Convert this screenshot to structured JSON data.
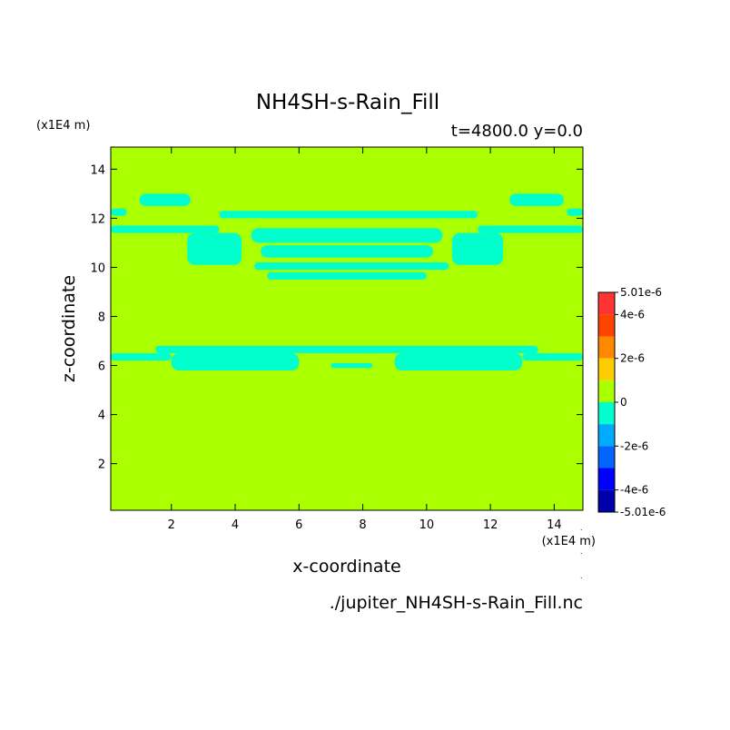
{
  "chart_data": {
    "type": "heatmap",
    "title": "NH4SH-s-Rain_Fill",
    "subtitle": "t=4800.0 y=0.0",
    "xlabel": "x-coordinate",
    "ylabel": "z-coordinate",
    "x_unit": "(x1E4 m)",
    "y_unit": "(x1E4 m)",
    "filename": "./jupiter_NH4SH-s-Rain_Fill.nc",
    "xlim": [
      0.1,
      14.9
    ],
    "ylim": [
      0.1,
      14.9
    ],
    "x_ticks": [
      "2",
      "4",
      "6",
      "8",
      "10",
      "12",
      "14"
    ],
    "y_ticks": [
      "2",
      "4",
      "6",
      "8",
      "10",
      "12",
      "14"
    ],
    "x_tick_values": [
      2,
      4,
      6,
      8,
      10,
      12,
      14
    ],
    "y_tick_values": [
      2,
      4,
      6,
      8,
      10,
      12,
      14
    ],
    "background_value": 0,
    "background_color": "#aaff00",
    "anomaly_color": "#00ffcc",
    "colorbar": {
      "labels": [
        "5.01e-6",
        "4e-6",
        "2e-6",
        "0",
        "-2e-6",
        "-4e-6",
        "-5.01e-6"
      ],
      "label_values": [
        5.01e-06,
        4e-06,
        2e-06,
        0,
        -2e-06,
        -4e-06,
        -5.01e-06
      ],
      "vmin": -5.01e-06,
      "vmax": 5.01e-06,
      "bands": [
        {
          "from": 4e-06,
          "to": 5.01e-06,
          "color": "#ff3333"
        },
        {
          "from": 3e-06,
          "to": 4e-06,
          "color": "#ff4400"
        },
        {
          "from": 2e-06,
          "to": 3e-06,
          "color": "#ff8800"
        },
        {
          "from": 1e-06,
          "to": 2e-06,
          "color": "#ffcc00"
        },
        {
          "from": 0,
          "to": 1e-06,
          "color": "#aaff00"
        },
        {
          "from": -1e-06,
          "to": 0,
          "color": "#00ffcc"
        },
        {
          "from": -2e-06,
          "to": -1e-06,
          "color": "#00aaff"
        },
        {
          "from": -3e-06,
          "to": -2e-06,
          "color": "#0066ff"
        },
        {
          "from": -4e-06,
          "to": -3e-06,
          "color": "#0000ff"
        },
        {
          "from": -5.01e-06,
          "to": -4e-06,
          "color": "#0000aa"
        }
      ]
    },
    "anomaly_regions": [
      {
        "name": "upper-band-main",
        "x": [
          3.5,
          11.6
        ],
        "z": [
          12.0,
          12.3
        ]
      },
      {
        "name": "upper-band-left",
        "x": [
          0.1,
          3.5
        ],
        "z": [
          11.4,
          11.7
        ]
      },
      {
        "name": "upper-band-right",
        "x": [
          11.6,
          14.9
        ],
        "z": [
          11.4,
          11.7
        ]
      },
      {
        "name": "upper-band-left-edge",
        "x": [
          0.1,
          0.6
        ],
        "z": [
          12.1,
          12.4
        ]
      },
      {
        "name": "upper-band-right-edge",
        "x": [
          14.4,
          14.9
        ],
        "z": [
          12.1,
          12.4
        ]
      },
      {
        "name": "upper-arc-left",
        "x": [
          2.5,
          4.2
        ],
        "z": [
          10.1,
          11.4
        ]
      },
      {
        "name": "upper-arc-right",
        "x": [
          10.8,
          12.4
        ],
        "z": [
          10.1,
          11.4
        ]
      },
      {
        "name": "upper-ring-1",
        "x": [
          4.5,
          10.5
        ],
        "z": [
          11.0,
          11.6
        ]
      },
      {
        "name": "upper-ring-2",
        "x": [
          4.8,
          10.2
        ],
        "z": [
          10.4,
          10.9
        ]
      },
      {
        "name": "upper-ring-3",
        "x": [
          4.6,
          10.7
        ],
        "z": [
          9.9,
          10.2
        ]
      },
      {
        "name": "upper-ring-4",
        "x": [
          5.0,
          10.0
        ],
        "z": [
          9.5,
          9.8
        ]
      },
      {
        "name": "upper-top-left",
        "x": [
          1.0,
          2.6
        ],
        "z": [
          12.5,
          13.0
        ]
      },
      {
        "name": "upper-top-right",
        "x": [
          12.6,
          14.3
        ],
        "z": [
          12.5,
          13.0
        ]
      },
      {
        "name": "lower-band-left",
        "x": [
          0.1,
          2.0
        ],
        "z": [
          6.2,
          6.5
        ]
      },
      {
        "name": "lower-band-right",
        "x": [
          13.0,
          14.9
        ],
        "z": [
          6.2,
          6.5
        ]
      },
      {
        "name": "lower-band-mid",
        "x": [
          1.5,
          13.5
        ],
        "z": [
          6.5,
          6.8
        ]
      },
      {
        "name": "lower-arc-left",
        "x": [
          2.0,
          6.0
        ],
        "z": [
          5.8,
          6.5
        ]
      },
      {
        "name": "lower-arc-right",
        "x": [
          9.0,
          13.0
        ],
        "z": [
          5.8,
          6.5
        ]
      },
      {
        "name": "lower-center-dots",
        "x": [
          7.0,
          8.3
        ],
        "z": [
          5.9,
          6.1
        ]
      }
    ]
  }
}
